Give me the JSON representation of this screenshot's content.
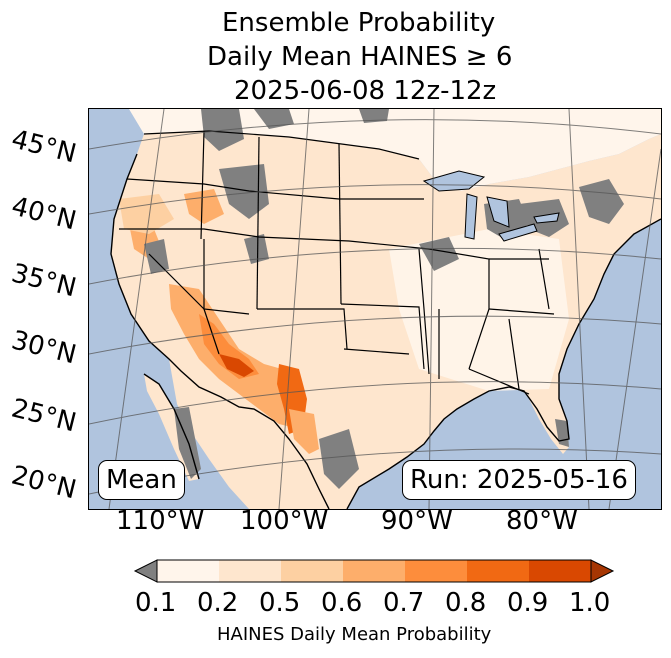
{
  "title": {
    "line1": "Ensemble Probability",
    "line2": "Daily Mean HAINES ≥ 6",
    "line3": "2025-06-08 12z-12z"
  },
  "map": {
    "lat_labels": [
      "45°N",
      "40°N",
      "35°N",
      "30°N",
      "25°N",
      "20°N"
    ],
    "lon_labels": [
      "110°W",
      "100°W",
      "90°W",
      "80°W"
    ],
    "mean_label": "Mean",
    "run_label": "Run: 2025-05-16",
    "colors": {
      "ocean": "#b0c4de",
      "missing_gray": "#808080",
      "water": "#b0c4de"
    }
  },
  "colorbar": {
    "label": "HAINES Daily Mean Probability",
    "ticks": [
      "0.1",
      "0.2",
      "0.5",
      "0.6",
      "0.7",
      "0.8",
      "0.9",
      "1.0"
    ],
    "colors": [
      "#fff5eb",
      "#fee6ce",
      "#fdd0a2",
      "#fdae6b",
      "#fd8d3c",
      "#f16913",
      "#d94801",
      "#a63603"
    ],
    "under_color": "#808080"
  }
}
